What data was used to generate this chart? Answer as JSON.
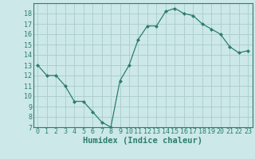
{
  "x": [
    0,
    1,
    2,
    3,
    4,
    5,
    6,
    7,
    8,
    9,
    10,
    11,
    12,
    13,
    14,
    15,
    16,
    17,
    18,
    19,
    20,
    21,
    22,
    23
  ],
  "y": [
    13,
    12,
    12,
    11,
    9.5,
    9.5,
    8.5,
    7.5,
    7,
    11.5,
    13,
    15.5,
    16.8,
    16.8,
    18.2,
    18.5,
    18,
    17.8,
    17,
    16.5,
    16,
    14.8,
    14.2,
    14.4
  ],
  "line_color": "#2d7d6e",
  "marker": "D",
  "marker_size": 2.0,
  "bg_color": "#cce8e8",
  "grid_color": "#aacccc",
  "xlabel": "Humidex (Indice chaleur)",
  "ylim": [
    7,
    19
  ],
  "xlim": [
    -0.5,
    23.5
  ],
  "yticks": [
    7,
    8,
    9,
    10,
    11,
    12,
    13,
    14,
    15,
    16,
    17,
    18
  ],
  "xticks": [
    0,
    1,
    2,
    3,
    4,
    5,
    6,
    7,
    8,
    9,
    10,
    11,
    12,
    13,
    14,
    15,
    16,
    17,
    18,
    19,
    20,
    21,
    22,
    23
  ],
  "tick_color": "#2d7d6e",
  "axis_color": "#2d7d6e",
  "label_fontsize": 6.0,
  "xlabel_fontsize": 7.5
}
